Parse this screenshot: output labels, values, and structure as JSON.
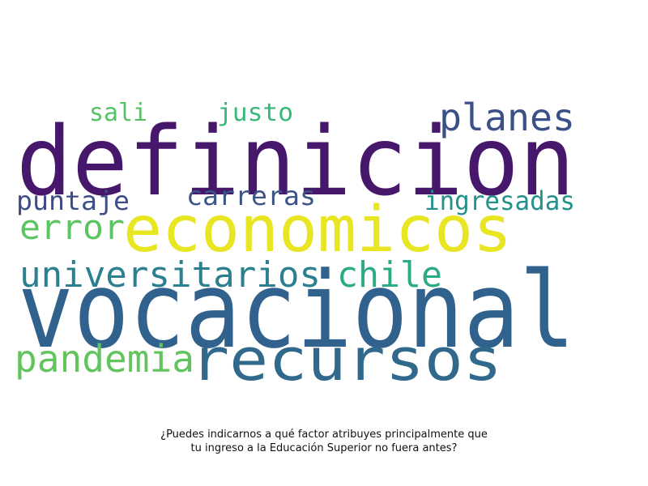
{
  "words": [
    {
      "id": "definicion",
      "text": "definicion",
      "color": "#47176b"
    },
    {
      "id": "vocacional",
      "text": "vocacional",
      "color": "#31628d"
    },
    {
      "id": "economicos",
      "text": "economicos",
      "color": "#e8e523"
    },
    {
      "id": "recursos",
      "text": "recursos",
      "color": "#30698b"
    },
    {
      "id": "planes",
      "text": "planes",
      "color": "#3b5088"
    },
    {
      "id": "universitarios",
      "text": "universitarios",
      "color": "#2c7f8e"
    },
    {
      "id": "chile",
      "text": "chile",
      "color": "#2aaa85"
    },
    {
      "id": "pandemia",
      "text": "pandemia",
      "color": "#63c45f"
    },
    {
      "id": "error",
      "text": "error",
      "color": "#5cc461"
    },
    {
      "id": "puntaje",
      "text": "puntaje",
      "color": "#3e4d87"
    },
    {
      "id": "carreras",
      "text": "carreras",
      "color": "#3e5487"
    },
    {
      "id": "ingresadas",
      "text": "ingresadas",
      "color": "#24918b"
    },
    {
      "id": "sali",
      "text": "sali",
      "color": "#58c166"
    },
    {
      "id": "justo",
      "text": "justo",
      "color": "#38b77b"
    }
  ],
  "caption": {
    "line1": "¿Puedes indicarnos a qué factor atribuyes principalmente que",
    "line2": "tu ingreso a la Educación Superior no fuera antes?"
  }
}
